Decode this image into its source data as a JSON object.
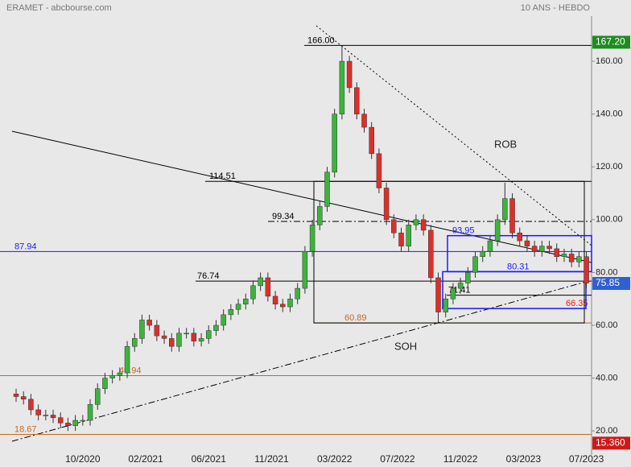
{
  "header": {
    "left": "ERAMET - abcbourse.com",
    "right": "10 ANS - HEBDO"
  },
  "chart_data": {
    "type": "candlestick",
    "x": [
      0,
      2,
      4,
      6,
      8,
      10,
      12,
      14,
      16,
      18,
      20,
      22,
      24,
      26,
      28,
      30,
      32,
      34,
      36,
      38,
      40,
      42,
      44,
      46,
      48,
      50,
      52,
      54,
      56,
      58,
      60,
      62,
      64,
      66,
      68,
      70,
      72,
      74,
      76,
      78,
      80,
      82,
      84,
      86,
      88,
      90,
      92,
      94,
      96,
      98,
      100,
      102,
      104,
      106,
      108,
      110,
      112,
      114,
      116,
      118,
      120,
      122,
      124,
      126,
      128,
      130,
      132,
      134,
      136,
      138,
      140,
      142,
      144,
      146,
      148,
      150,
      152,
      154
    ],
    "open": [
      34,
      33,
      32,
      28,
      26,
      26,
      25,
      23,
      22,
      24,
      24,
      30,
      36,
      40,
      41,
      42,
      52,
      55,
      62,
      60,
      56,
      55,
      52,
      57,
      57,
      54,
      55,
      58,
      60,
      64,
      66,
      68,
      70,
      75,
      78,
      71,
      68,
      67,
      70,
      74,
      88,
      98,
      105,
      118,
      140,
      160,
      150,
      140,
      135,
      125,
      112,
      100,
      95,
      90,
      98,
      100,
      96,
      78,
      65,
      70,
      74,
      76,
      80,
      86,
      88,
      92,
      100,
      108,
      95,
      92,
      90,
      88,
      90,
      89,
      86,
      87,
      84,
      86
    ],
    "high": [
      36,
      35,
      34,
      30,
      28,
      28,
      27,
      25,
      26,
      26,
      32,
      38,
      42,
      43,
      44,
      54,
      57,
      64,
      64,
      62,
      58,
      57,
      59,
      59,
      59,
      57,
      60,
      62,
      66,
      68,
      70,
      72,
      77,
      80,
      80,
      73,
      70,
      72,
      76,
      90,
      100,
      107,
      120,
      142,
      166,
      162,
      152,
      142,
      137,
      127,
      114,
      102,
      97,
      100,
      102,
      102,
      98,
      80,
      72,
      76,
      78,
      82,
      88,
      90,
      94,
      102,
      114,
      110,
      97,
      94,
      92,
      92,
      92,
      91,
      89,
      89,
      88,
      88
    ],
    "low": [
      31,
      30,
      26,
      24,
      24,
      23,
      21,
      20,
      20,
      22,
      22,
      28,
      34,
      38,
      39,
      40,
      50,
      53,
      58,
      54,
      53,
      50,
      50,
      55,
      52,
      52,
      53,
      56,
      58,
      62,
      64,
      66,
      68,
      73,
      69,
      66,
      65,
      65,
      68,
      72,
      86,
      96,
      103,
      116,
      138,
      148,
      138,
      133,
      123,
      110,
      98,
      93,
      88,
      88,
      96,
      94,
      76,
      61,
      63,
      68,
      72,
      74,
      78,
      84,
      86,
      90,
      98,
      93,
      90,
      88,
      86,
      86,
      87,
      84,
      84,
      82,
      82,
      74
    ],
    "close": [
      33,
      32,
      28,
      26,
      26,
      25,
      23,
      22,
      24,
      24,
      30,
      36,
      40,
      41,
      42,
      52,
      55,
      62,
      60,
      56,
      55,
      52,
      57,
      57,
      54,
      55,
      58,
      60,
      64,
      66,
      68,
      70,
      75,
      78,
      71,
      68,
      67,
      70,
      74,
      88,
      98,
      105,
      118,
      140,
      160,
      150,
      140,
      135,
      125,
      112,
      100,
      95,
      90,
      98,
      100,
      96,
      78,
      65,
      70,
      74,
      76,
      80,
      86,
      88,
      92,
      100,
      108,
      95,
      92,
      90,
      88,
      90,
      89,
      86,
      87,
      84,
      86,
      76
    ],
    "up_color": "#3cb43c",
    "down_color": "#dc2f2a",
    "xlim": [
      -4.35,
      155.4
    ],
    "xticks": [
      {
        "value": 18,
        "label": "10/2020"
      },
      {
        "value": 35,
        "label": "02/2021"
      },
      {
        "value": 52,
        "label": "06/2021"
      },
      {
        "value": 69,
        "label": "11/2021"
      },
      {
        "value": 86,
        "label": "03/2022"
      },
      {
        "value": 103,
        "label": "07/2022"
      },
      {
        "value": 120,
        "label": "11/2022"
      },
      {
        "value": 137,
        "label": "03/2023"
      },
      {
        "value": 154,
        "label": "07/2023"
      }
    ],
    "ylim": [
      10.9,
      183.2
    ],
    "yticks": [
      {
        "value": 20,
        "label": "20.00"
      },
      {
        "value": 40,
        "label": "40.00"
      },
      {
        "value": 60,
        "label": "60.00"
      },
      {
        "value": 80,
        "label": "80.00"
      },
      {
        "value": 100,
        "label": "100.00"
      },
      {
        "value": 120,
        "label": "120.00"
      },
      {
        "value": 140,
        "label": "140.00"
      },
      {
        "value": 160,
        "label": "160.00"
      }
    ],
    "levels": [
      {
        "value": 166,
        "label": "166.00",
        "color": "#000000"
      },
      {
        "value": 114.51,
        "label": "114.51",
        "color": "#000000"
      },
      {
        "value": 99.34,
        "label": "99.34",
        "color": "#000000"
      },
      {
        "value": 93.95,
        "label": "93.95",
        "color": "#1a1aff"
      },
      {
        "value": 80.31,
        "label": "80.31",
        "color": "#1a1aff"
      },
      {
        "value": 87.94,
        "label": "87.94",
        "color": "#1a1aff"
      },
      {
        "value": 76.74,
        "label": "76.74",
        "color": "#000000"
      },
      {
        "value": 71.41,
        "label": "71.41",
        "color": "#000000"
      },
      {
        "value": 66.35,
        "label": "66.35",
        "color": "#e02020"
      },
      {
        "value": 60.89,
        "label": "60.89",
        "color": "#c8661e"
      },
      {
        "value": 40.94,
        "label": "40.94",
        "color": "#c8661e"
      },
      {
        "value": 18.67,
        "label": "18.67",
        "color": "#c8661e"
      }
    ],
    "price_tags": [
      {
        "value": 167.2,
        "label": "167.20",
        "color": "#1e8c1e"
      },
      {
        "value": 75.85,
        "label": "75.85",
        "color": "#2f5fd0"
      },
      {
        "value": 15.36,
        "label": "15.360",
        "color": "#d01818"
      }
    ],
    "annotations": [
      "ROB",
      "SOH"
    ]
  }
}
